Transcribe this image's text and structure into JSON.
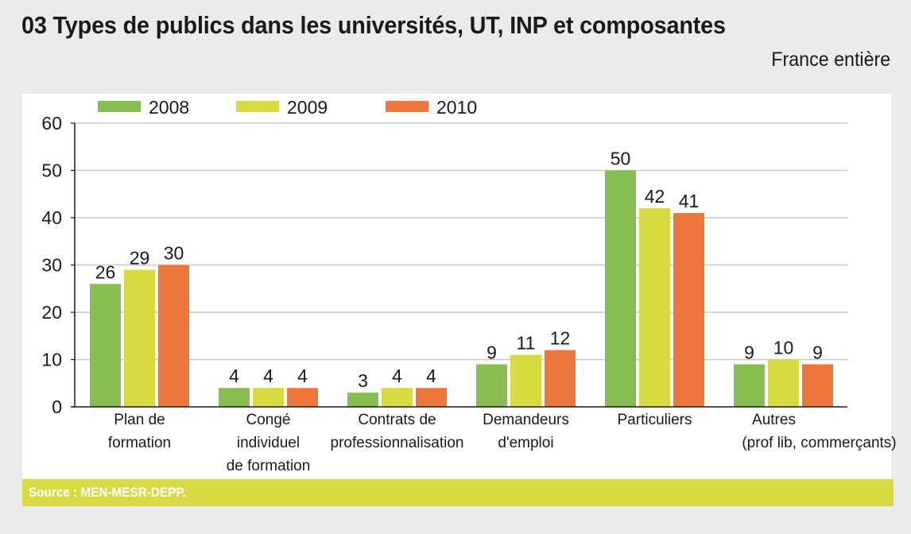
{
  "header": {
    "title": "03   Types de publics dans les universités, UT, INP et composantes",
    "subtitle": "France entière"
  },
  "source": "Source : MEN-MESR-DEPP.",
  "colors": {
    "2008": "#88bd52",
    "2009": "#d8da42",
    "2010": "#ed763c"
  },
  "chart_data": {
    "type": "bar",
    "title": "Types de publics dans les universités, UT, INP et composantes",
    "subtitle": "France entière",
    "xlabel": "",
    "ylabel": "",
    "ylim": [
      0,
      60
    ],
    "yticks": [
      0,
      10,
      20,
      30,
      40,
      50,
      60
    ],
    "grid": true,
    "legend": "top-left",
    "categories": [
      [
        "Plan de",
        "formation"
      ],
      [
        "Congé",
        "individuel",
        "de formation"
      ],
      [
        "Contrats de",
        "professionnalisation"
      ],
      [
        "Demandeurs",
        "d'emploi"
      ],
      [
        "Particuliers"
      ],
      [
        "Autres",
        "(prof lib, commerçants)"
      ]
    ],
    "series": [
      {
        "name": "2008",
        "color": "#88bd52",
        "values": [
          26,
          4,
          3,
          9,
          50,
          9
        ]
      },
      {
        "name": "2009",
        "color": "#d8da42",
        "values": [
          29,
          4,
          4,
          11,
          42,
          10
        ]
      },
      {
        "name": "2010",
        "color": "#ed763c",
        "values": [
          30,
          4,
          4,
          12,
          41,
          9
        ]
      }
    ]
  }
}
